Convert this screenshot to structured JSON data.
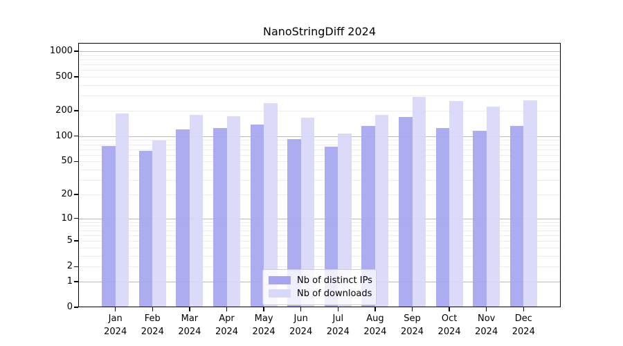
{
  "title": "NanoStringDiff 2024",
  "legend": {
    "items": [
      {
        "label": "Nb of distinct IPs",
        "color": "#a5a5f0"
      },
      {
        "label": "Nb of downloads",
        "color": "#d8d8f8"
      }
    ]
  },
  "y_axis": {
    "tick_labels": [
      "1000",
      "500",
      "200",
      "100",
      "50",
      "20",
      "10",
      "5",
      "2",
      "1",
      "0"
    ]
  },
  "x_axis": {
    "tick_line1": [
      "Jan",
      "Feb",
      "Mar",
      "Apr",
      "May",
      "Jun",
      "Jul",
      "Aug",
      "Sep",
      "Oct",
      "Nov",
      "Dec"
    ],
    "tick_line2": "2024"
  },
  "colors": {
    "ips_bar": "#a5a5f0",
    "downloads_bar": "#d8d8f8",
    "major_grid": "#b8b8b8",
    "minor_grid": "#ececec",
    "axis": "#000000"
  },
  "chart_data": {
    "type": "bar",
    "title": "NanoStringDiff 2024",
    "categories": [
      "Jan 2024",
      "Feb 2024",
      "Mar 2024",
      "Apr 2024",
      "May 2024",
      "Jun 2024",
      "Jul 2024",
      "Aug 2024",
      "Sep 2024",
      "Oct 2024",
      "Nov 2024",
      "Dec 2024"
    ],
    "series": [
      {
        "name": "Nb of distinct IPs",
        "color": "#a5a5f0",
        "values": [
          77,
          67,
          121,
          126,
          137,
          93,
          75,
          132,
          170,
          126,
          116,
          133
        ]
      },
      {
        "name": "Nb of downloads",
        "color": "#d8d8f8",
        "values": [
          187,
          89,
          179,
          171,
          244,
          165,
          108,
          177,
          290,
          262,
          223,
          264
        ]
      }
    ],
    "yscale": "log(1+x)",
    "y_ticks": [
      1000,
      500,
      200,
      100,
      50,
      20,
      10,
      5,
      2,
      1,
      0
    ],
    "minor_grid_values": [
      2,
      3,
      4,
      5,
      6,
      7,
      8,
      9,
      20,
      30,
      40,
      50,
      60,
      70,
      80,
      90,
      200,
      300,
      400,
      500,
      600,
      700,
      800,
      900
    ],
    "major_grid_values": [
      1,
      10,
      100,
      1000
    ],
    "ylim": [
      0,
      1250
    ],
    "grid": "both",
    "legend_position": "lower-center"
  }
}
